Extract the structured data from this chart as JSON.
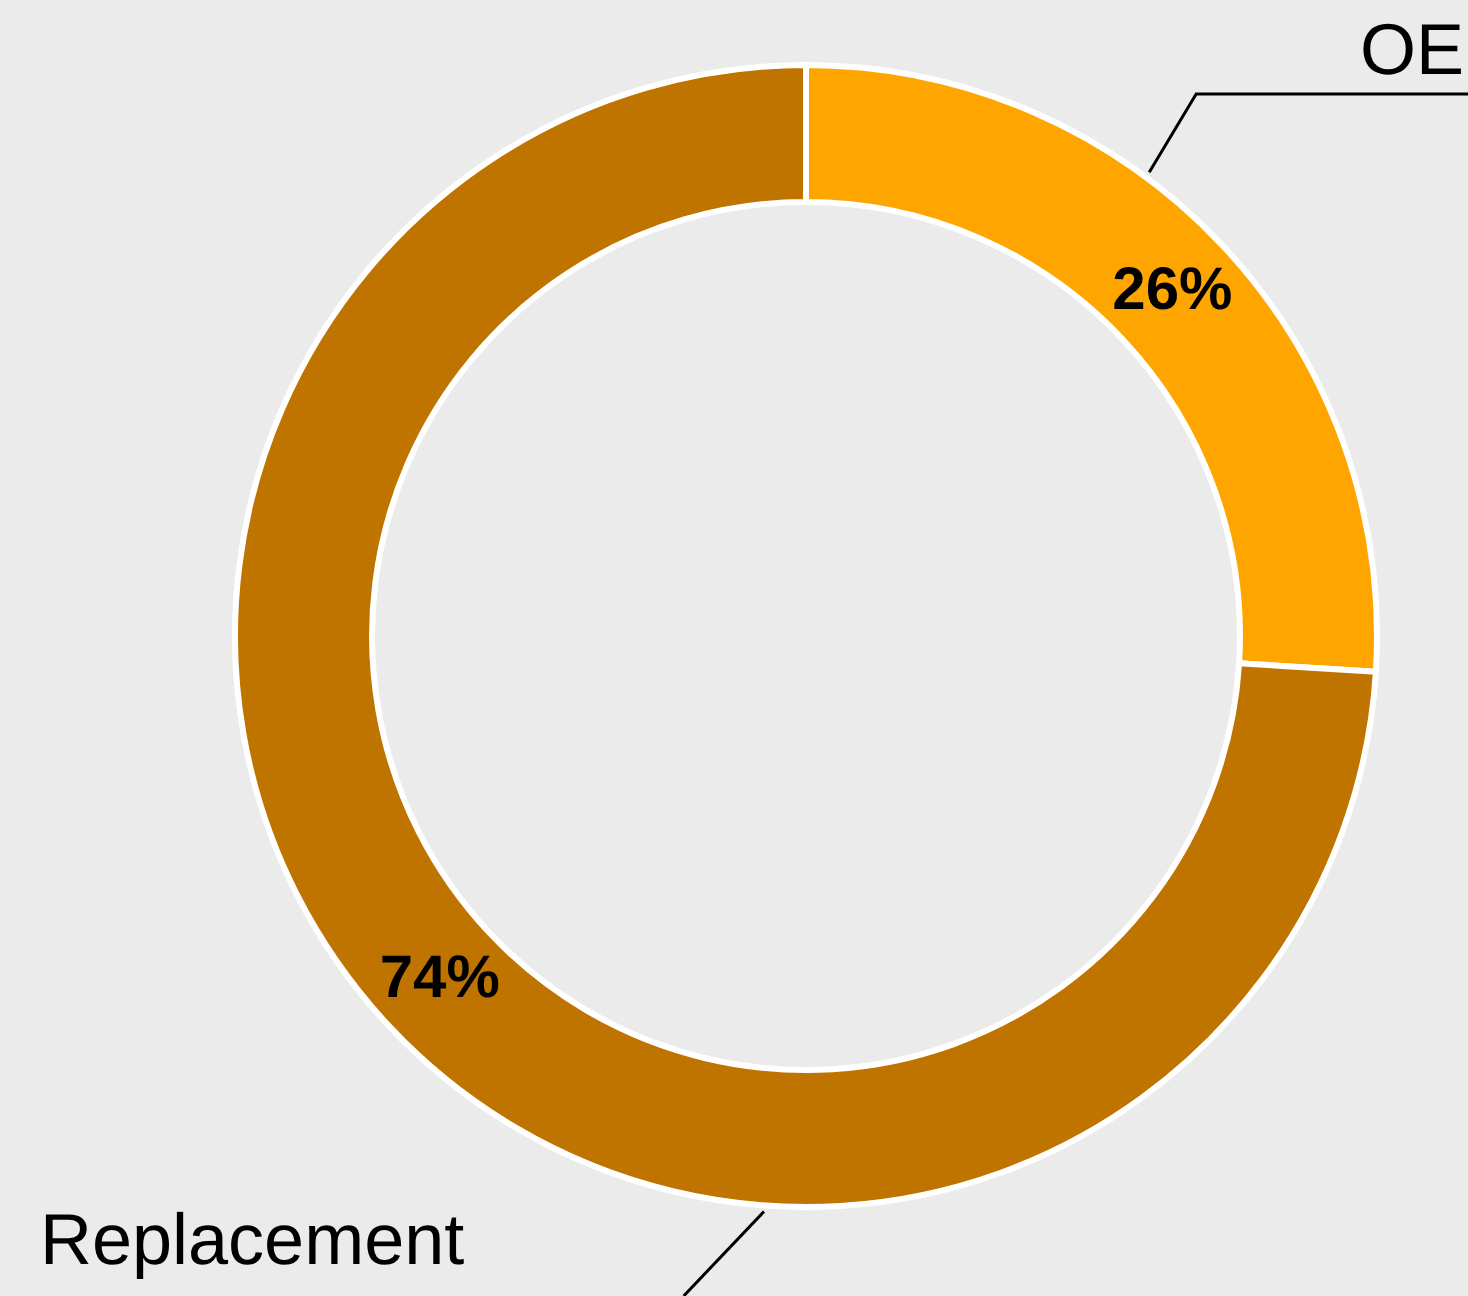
{
  "chart_data": {
    "type": "donut",
    "categories": [
      "OE",
      "Replacement"
    ],
    "values": [
      26,
      74
    ],
    "colors": [
      "#ffa500",
      "#c07400"
    ],
    "value_labels": [
      "26%",
      "74%"
    ]
  }
}
